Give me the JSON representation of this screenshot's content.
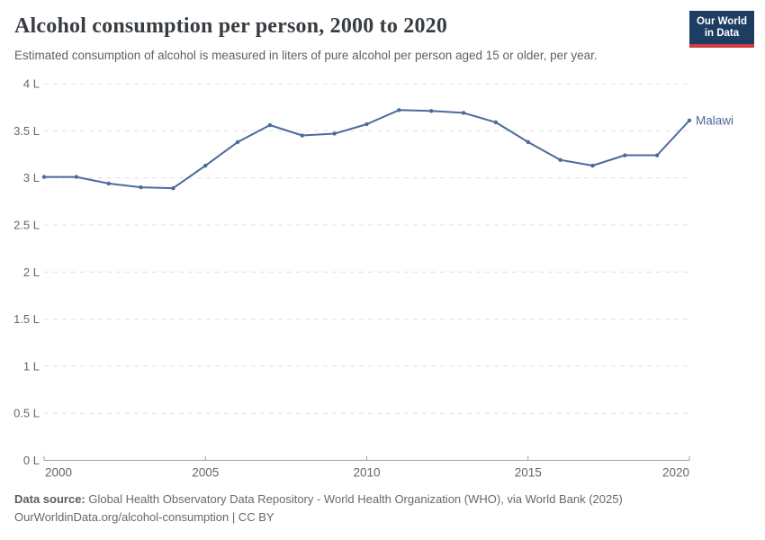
{
  "header": {
    "title": "Alcohol consumption per person, 2000 to 2020",
    "subtitle": "Estimated consumption of alcohol is measured in liters of pure alcohol per person aged 15 or older, per year.",
    "logo": {
      "line1": "Our World",
      "line2": "in Data"
    }
  },
  "chart_data": {
    "type": "line",
    "title": "Alcohol consumption per person, 2000 to 2020",
    "xlabel": "",
    "ylabel": "liters of pure alcohol per person aged 15+, per year",
    "xlim": [
      2000,
      2020
    ],
    "ylim": [
      0,
      4
    ],
    "grid": "horizontal-dashed",
    "legend_position": "end-of-line-label",
    "x_ticks": [
      {
        "year": 2000,
        "label": "2000",
        "anchor": "start"
      },
      {
        "year": 2005,
        "label": "2005",
        "anchor": "middle"
      },
      {
        "year": 2010,
        "label": "2010",
        "anchor": "middle"
      },
      {
        "year": 2015,
        "label": "2015",
        "anchor": "middle"
      },
      {
        "year": 2020,
        "label": "2020",
        "anchor": "end"
      }
    ],
    "y_ticks": [
      {
        "v": 0,
        "label": "0 L"
      },
      {
        "v": 0.5,
        "label": "0.5 L"
      },
      {
        "v": 1,
        "label": "1 L"
      },
      {
        "v": 1.5,
        "label": "1.5 L"
      },
      {
        "v": 2,
        "label": "2 L"
      },
      {
        "v": 2.5,
        "label": "2.5 L"
      },
      {
        "v": 3,
        "label": "3 L"
      },
      {
        "v": 3.5,
        "label": "3.5 L"
      },
      {
        "v": 4,
        "label": "4 L"
      }
    ],
    "series": [
      {
        "name": "Malawi",
        "color": "#4c6a9c",
        "x": [
          2000,
          2001,
          2002,
          2003,
          2004,
          2005,
          2006,
          2007,
          2008,
          2009,
          2010,
          2011,
          2012,
          2013,
          2014,
          2015,
          2016,
          2017,
          2018,
          2019,
          2020
        ],
        "values": [
          3.01,
          3.01,
          2.94,
          2.9,
          2.89,
          3.13,
          3.38,
          3.56,
          3.45,
          3.47,
          3.57,
          3.72,
          3.71,
          3.69,
          3.59,
          3.38,
          3.19,
          3.13,
          3.24,
          3.24,
          3.61
        ]
      }
    ]
  },
  "footer": {
    "source_label": "Data source:",
    "source_text": "Global Health Observatory Data Repository - World Health Organization (WHO), via World Bank (2025)",
    "link_line": "OurWorldinData.org/alcohol-consumption | CC BY"
  },
  "colors": {
    "line": "#4c6a9c",
    "grid": "#e0e0e0",
    "axis": "#a0a0a0",
    "axis_text": "#666666",
    "logo_bg": "#1d3d63",
    "logo_accent": "#d13d43"
  }
}
